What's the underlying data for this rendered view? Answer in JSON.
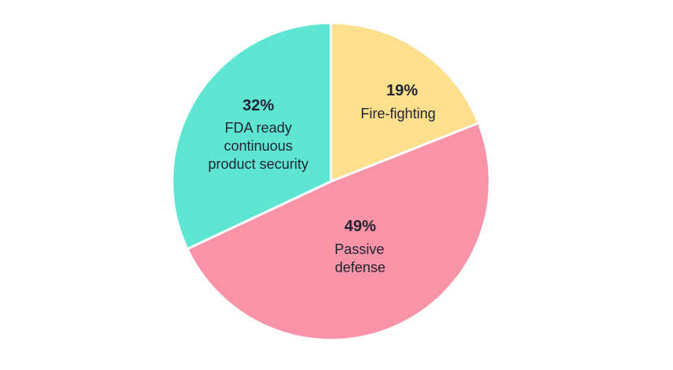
{
  "chart_data": {
    "type": "pie",
    "title": "",
    "slices": [
      {
        "pct_label": "19%",
        "label_lines": [
          "Fire-fighting"
        ],
        "value": 19,
        "color": "#fddf8d"
      },
      {
        "pct_label": "49%",
        "label_lines": [
          "Passive",
          "defense"
        ],
        "value": 49,
        "color": "#f993a8"
      },
      {
        "pct_label": "32%",
        "label_lines": [
          "FDA ready",
          "continuous",
          "product security"
        ],
        "value": 32,
        "color": "#5ee6d3"
      }
    ]
  }
}
